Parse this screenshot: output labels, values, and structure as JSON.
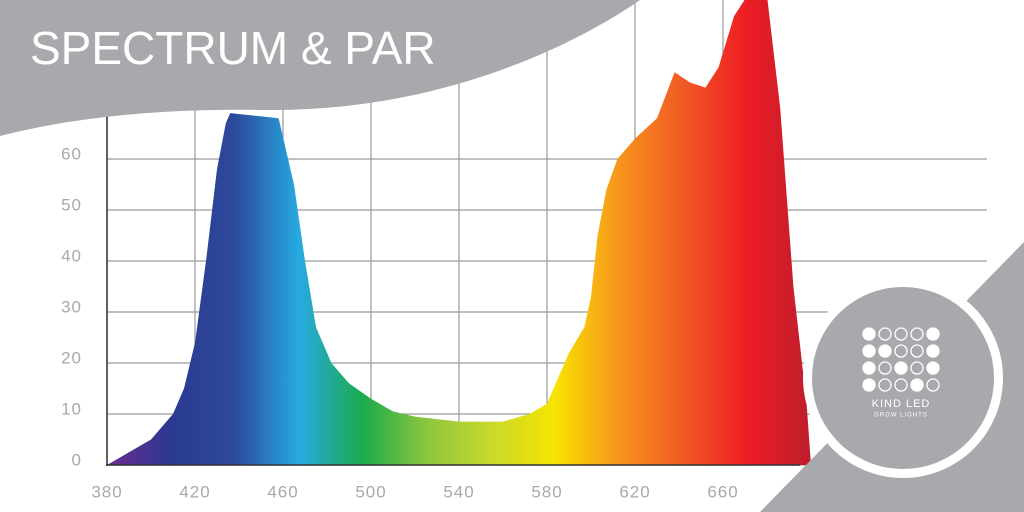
{
  "chart_data": {
    "type": "area",
    "title": "SPECTRUM & PAR",
    "logo": {
      "brand": "KIND LED",
      "tagline": "GROW LIGHTS"
    },
    "x": [
      380,
      400,
      410,
      415,
      420,
      425,
      430,
      434,
      436,
      458,
      465,
      470,
      475,
      482,
      490,
      500,
      510,
      520,
      540,
      560,
      572,
      580,
      585,
      590,
      597,
      600,
      603,
      607,
      612,
      620,
      630,
      638,
      645,
      652,
      658,
      665,
      671,
      680,
      686,
      692,
      698,
      700
    ],
    "values": [
      0,
      5,
      10,
      15,
      24,
      40,
      58,
      67,
      69,
      68,
      55,
      40,
      27,
      20,
      16,
      13,
      10.5,
      9.5,
      8.5,
      8.5,
      10,
      12,
      17,
      22,
      27,
      33,
      45,
      54,
      60,
      64,
      68,
      77,
      75,
      74,
      78,
      88,
      92,
      92,
      70,
      35,
      12,
      0
    ],
    "gradient_colors": [
      "#6b2c8f",
      "#2b3990",
      "#2c4a9c",
      "#27aae1",
      "#1bab4b",
      "#8dc63f",
      "#c8d92b",
      "#f7e400",
      "#f7941d",
      "#f15a24",
      "#ed1c24",
      "#be1e2d"
    ],
    "xlim": [
      380,
      780
    ],
    "ylim": [
      0,
      92
    ],
    "xticks": [
      380,
      420,
      460,
      500,
      540,
      580,
      620,
      660
    ],
    "yticks": [
      0,
      10,
      20,
      30,
      40,
      50,
      60
    ],
    "grid": true
  }
}
